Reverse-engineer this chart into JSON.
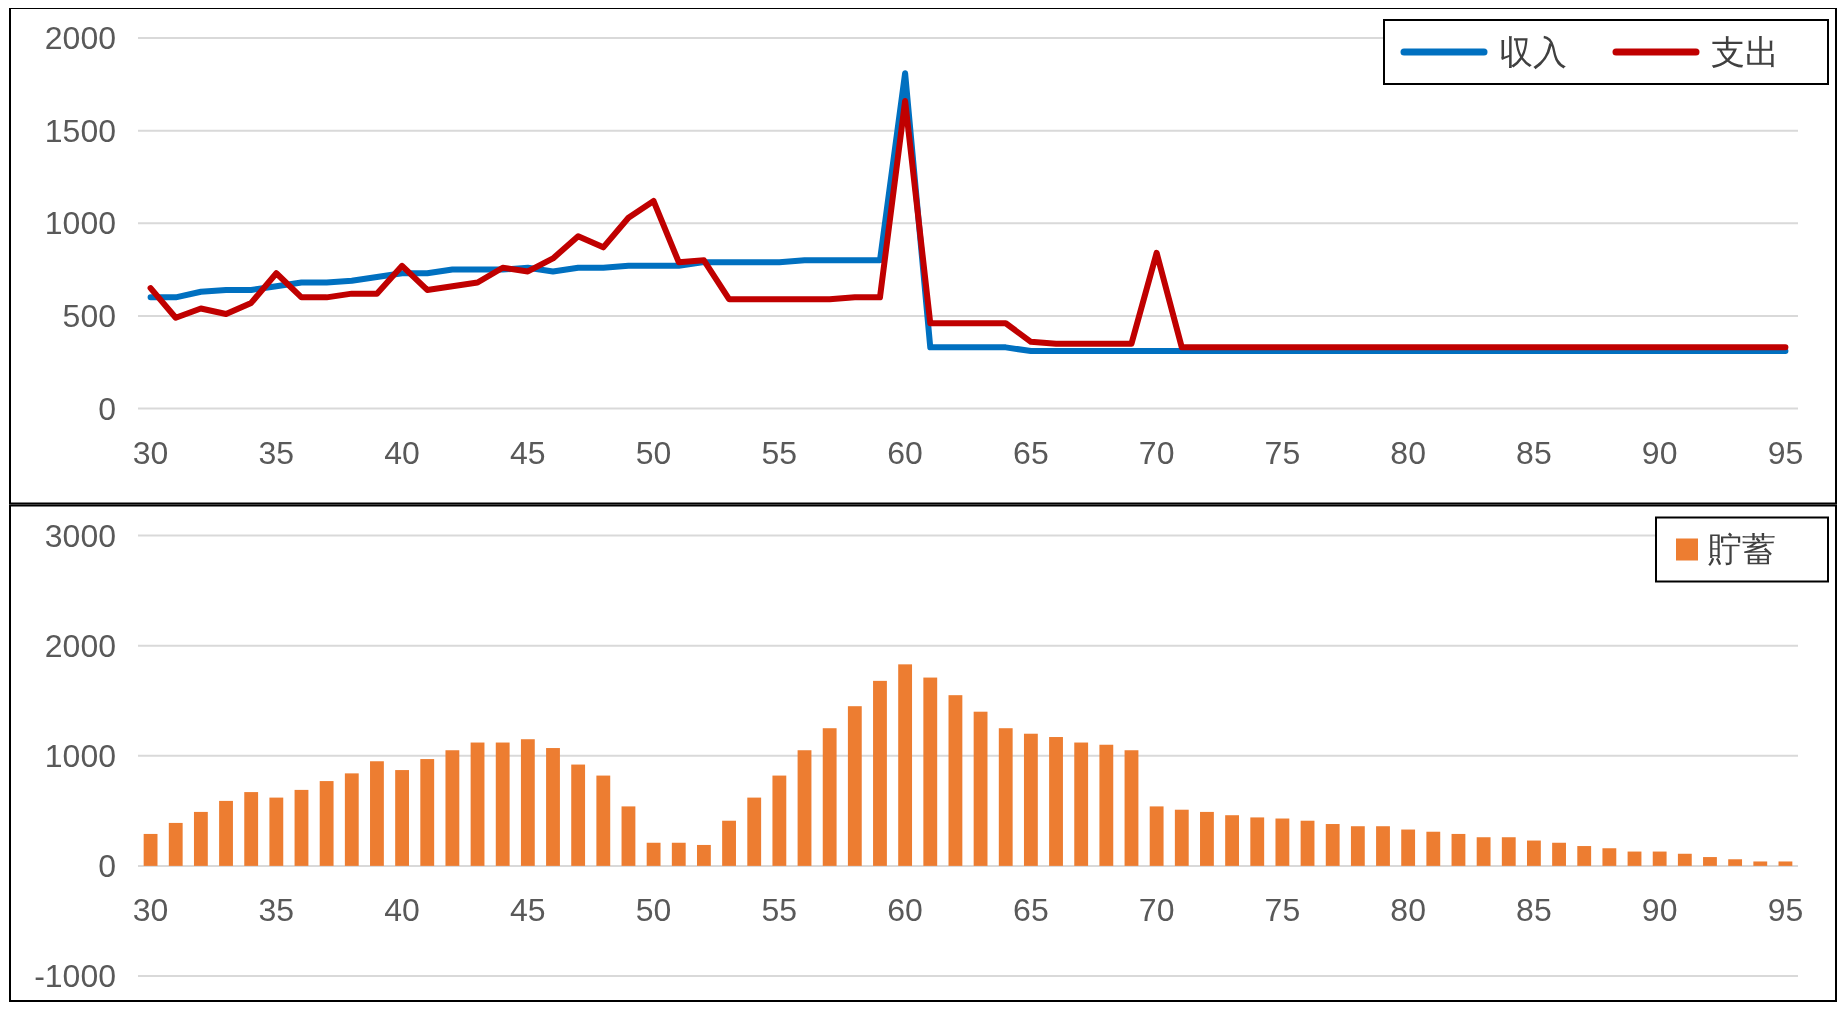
{
  "chart_data": [
    {
      "type": "line",
      "x": [
        30,
        31,
        32,
        33,
        34,
        35,
        36,
        37,
        38,
        39,
        40,
        41,
        42,
        43,
        44,
        45,
        46,
        47,
        48,
        49,
        50,
        51,
        52,
        53,
        54,
        55,
        56,
        57,
        58,
        59,
        60,
        61,
        62,
        63,
        64,
        65,
        66,
        67,
        68,
        69,
        70,
        71,
        72,
        73,
        74,
        75,
        76,
        77,
        78,
        79,
        80,
        81,
        82,
        83,
        84,
        85,
        86,
        87,
        88,
        89,
        90,
        91,
        92,
        93,
        94,
        95
      ],
      "series": [
        {
          "name": "収入",
          "color": "#0070c0",
          "values": [
            600,
            600,
            630,
            640,
            640,
            660,
            680,
            680,
            690,
            710,
            730,
            730,
            750,
            750,
            750,
            760,
            740,
            760,
            760,
            770,
            770,
            770,
            790,
            790,
            790,
            790,
            800,
            800,
            800,
            800,
            1810,
            330,
            330,
            330,
            330,
            310,
            310,
            310,
            310,
            310,
            310,
            310,
            310,
            310,
            310,
            310,
            310,
            310,
            310,
            310,
            310,
            310,
            310,
            310,
            310,
            310,
            310,
            310,
            310,
            310,
            310,
            310,
            310,
            310,
            310,
            310
          ]
        },
        {
          "name": "支出",
          "color": "#c00000",
          "values": [
            650,
            490,
            540,
            510,
            570,
            730,
            600,
            600,
            620,
            620,
            770,
            640,
            660,
            680,
            760,
            740,
            810,
            930,
            870,
            1030,
            1120,
            790,
            800,
            590,
            590,
            590,
            590,
            590,
            600,
            600,
            1660,
            460,
            460,
            460,
            460,
            360,
            350,
            350,
            350,
            350,
            840,
            330,
            330,
            330,
            330,
            330,
            330,
            330,
            330,
            330,
            330,
            330,
            330,
            330,
            330,
            330,
            330,
            330,
            330,
            330,
            330,
            330,
            330,
            330,
            330,
            330
          ]
        }
      ],
      "xlim": [
        29.5,
        95.5
      ],
      "xticks": [
        30,
        35,
        40,
        45,
        50,
        55,
        60,
        65,
        70,
        75,
        80,
        85,
        90,
        95
      ],
      "ylim": [
        0,
        2000
      ],
      "yticks": [
        0,
        500,
        1000,
        1500,
        2000
      ],
      "grid": "y",
      "legend": "top right",
      "line_style": "solid",
      "marker": "none"
    },
    {
      "type": "bar",
      "x": [
        30,
        31,
        32,
        33,
        34,
        35,
        36,
        37,
        38,
        39,
        40,
        41,
        42,
        43,
        44,
        45,
        46,
        47,
        48,
        49,
        50,
        51,
        52,
        53,
        54,
        55,
        56,
        57,
        58,
        59,
        60,
        61,
        62,
        63,
        64,
        65,
        66,
        67,
        68,
        69,
        70,
        71,
        72,
        73,
        74,
        75,
        76,
        77,
        78,
        79,
        80,
        81,
        82,
        83,
        84,
        85,
        86,
        87,
        88,
        89,
        90,
        91,
        92,
        93,
        94,
        95
      ],
      "series": [
        {
          "name": "貯蓄",
          "color": "#ed7d31",
          "values": [
            290,
            390,
            490,
            590,
            670,
            620,
            690,
            770,
            840,
            950,
            870,
            970,
            1050,
            1120,
            1120,
            1150,
            1070,
            920,
            820,
            540,
            210,
            210,
            190,
            410,
            620,
            820,
            1050,
            1250,
            1450,
            1680,
            1830,
            1710,
            1550,
            1400,
            1250,
            1200,
            1170,
            1120,
            1100,
            1050,
            540,
            510,
            490,
            460,
            440,
            430,
            410,
            380,
            360,
            360,
            330,
            310,
            290,
            260,
            260,
            230,
            210,
            180,
            160,
            130,
            130,
            110,
            80,
            60,
            40,
            40
          ]
        }
      ],
      "xlim": [
        29.5,
        95.5
      ],
      "xticks": [
        30,
        35,
        40,
        45,
        50,
        55,
        60,
        65,
        70,
        75,
        80,
        85,
        90,
        95
      ],
      "ylim": [
        -1000,
        3000
      ],
      "yticks": [
        -1000,
        0,
        1000,
        2000,
        3000
      ],
      "grid": "y",
      "legend": "top right"
    }
  ]
}
